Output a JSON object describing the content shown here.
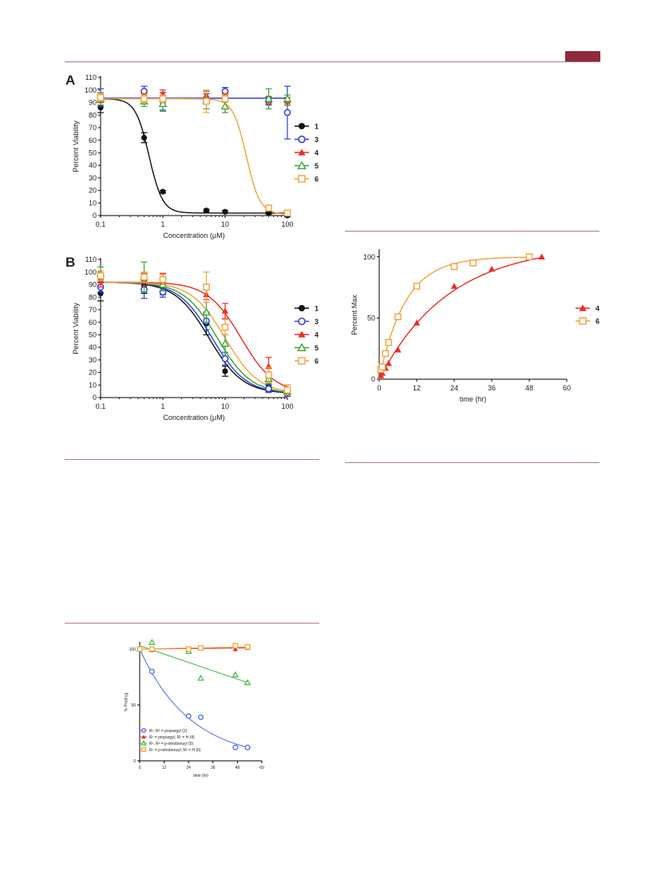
{
  "page": {
    "accent": "#8e2a3a",
    "rule_color": "#b07a86"
  },
  "chart_data": [
    {
      "id": "A",
      "panel_label": "A",
      "type": "scatter",
      "x_scale": "log",
      "xlabel": "Concentration (μM)",
      "ylabel": "Percent Viability",
      "xlim": [
        0.1,
        100
      ],
      "ylim": [
        0,
        110
      ],
      "x_ticks": [
        "0.1",
        "1",
        "10",
        "100"
      ],
      "y_ticks": [
        0,
        10,
        20,
        30,
        40,
        50,
        60,
        70,
        80,
        90,
        100,
        110
      ],
      "legend_position": "right",
      "series": [
        {
          "name": "1",
          "color": "#111111",
          "marker": "filled-circle",
          "x": [
            0.1,
            0.5,
            1,
            5,
            10,
            50,
            100
          ],
          "y": [
            86,
            62,
            19,
            4,
            3,
            2,
            0
          ],
          "err": [
            4,
            4,
            1,
            1,
            1,
            1,
            1
          ],
          "fit": {
            "top": 93,
            "bottom": 2,
            "ec50": 0.6,
            "hill": 4
          }
        },
        {
          "name": "3",
          "color": "#2f3fd6",
          "marker": "open-circle",
          "x": [
            0.1,
            0.5,
            1,
            5,
            10,
            50,
            100
          ],
          "y": [
            94,
            99,
            91,
            93,
            99,
            91,
            82
          ],
          "err": [
            7,
            4,
            7,
            4,
            3,
            3,
            21
          ],
          "fit": {
            "top": 93.5,
            "bottom": 93.5,
            "ec50": 10,
            "hill": 1
          }
        },
        {
          "name": "4",
          "color": "#ee2b24",
          "marker": "filled-triangle",
          "x": [
            0.1,
            0.5,
            1,
            5,
            10,
            50,
            100
          ],
          "y": [
            93,
            94,
            97,
            96,
            94,
            92,
            91
          ],
          "err": [
            3,
            3,
            3,
            3,
            3,
            3,
            3
          ],
          "fit": null
        },
        {
          "name": "5",
          "color": "#33a532",
          "marker": "open-triangle",
          "x": [
            0.1,
            0.5,
            1,
            5,
            10,
            50,
            100
          ],
          "y": [
            93,
            91,
            89,
            92,
            87,
            93,
            93
          ],
          "err": [
            5,
            4,
            6,
            7,
            5,
            8,
            3
          ],
          "fit": null
        },
        {
          "name": "6",
          "color": "#f6a13b",
          "marker": "open-square",
          "x": [
            0.1,
            0.5,
            1,
            5,
            10,
            50,
            100
          ],
          "y": [
            94,
            93,
            93,
            91,
            93,
            6,
            2
          ],
          "err": [
            3,
            3,
            3,
            9,
            3,
            2,
            1
          ],
          "fit": {
            "top": 93,
            "bottom": 1,
            "ec50": 22,
            "hill": 4
          }
        }
      ]
    },
    {
      "id": "B",
      "panel_label": "B",
      "type": "scatter",
      "x_scale": "log",
      "xlabel": "Concentration (μM)",
      "ylabel": "Percent Viability",
      "xlim": [
        0.1,
        100
      ],
      "ylim": [
        0,
        110
      ],
      "x_ticks": [
        "0.1",
        "1",
        "10",
        "100"
      ],
      "y_ticks": [
        0,
        10,
        20,
        30,
        40,
        50,
        60,
        70,
        80,
        90,
        100,
        110
      ],
      "legend_position": "right",
      "series": [
        {
          "name": "1",
          "color": "#111111",
          "marker": "filled-circle",
          "x": [
            0.1,
            0.5,
            1,
            5,
            10,
            50,
            100
          ],
          "y": [
            83,
            89,
            90,
            59,
            21,
            9,
            4
          ],
          "err": [
            6,
            6,
            8,
            9,
            4,
            4,
            3
          ],
          "fit": {
            "top": 92,
            "bottom": 3,
            "ec50": 5.5,
            "hill": 1.6
          }
        },
        {
          "name": "3",
          "color": "#2f3fd6",
          "marker": "open-circle",
          "x": [
            0.1,
            0.5,
            1,
            5,
            10,
            50,
            100
          ],
          "y": [
            88,
            86,
            84,
            61,
            31,
            7,
            4
          ],
          "err": [
            4,
            7,
            4,
            7,
            5,
            3,
            3
          ],
          "fit": {
            "top": 92,
            "bottom": 3,
            "ec50": 6.2,
            "hill": 1.6
          }
        },
        {
          "name": "4",
          "color": "#ee2b24",
          "marker": "filled-triangle",
          "x": [
            0.1,
            0.5,
            1,
            5,
            10,
            50,
            100
          ],
          "y": [
            93,
            94,
            95,
            82,
            69,
            25,
            6
          ],
          "err": [
            5,
            5,
            4,
            4,
            6,
            7,
            4
          ],
          "fit": {
            "top": 92,
            "bottom": 3,
            "ec50": 18,
            "hill": 1.6
          }
        },
        {
          "name": "5",
          "color": "#33a532",
          "marker": "open-triangle",
          "x": [
            0.1,
            0.5,
            1,
            5,
            10,
            50,
            100
          ],
          "y": [
            99,
            96,
            90,
            68,
            43,
            15,
            5
          ],
          "err": [
            5,
            12,
            5,
            8,
            7,
            4,
            3
          ],
          "fit": {
            "top": 92,
            "bottom": 3,
            "ec50": 7.5,
            "hill": 1.6
          }
        },
        {
          "name": "6",
          "color": "#f6a13b",
          "marker": "open-square",
          "x": [
            0.1,
            0.5,
            1,
            5,
            10,
            50,
            100
          ],
          "y": [
            97,
            96,
            94,
            88,
            56,
            18,
            6
          ],
          "err": [
            4,
            4,
            4,
            12,
            6,
            6,
            4
          ],
          "fit": {
            "top": 92,
            "bottom": 3,
            "ec50": 10,
            "hill": 1.6
          }
        }
      ]
    },
    {
      "id": "C",
      "type": "scatter",
      "x_scale": "linear",
      "xlabel": "time (hr)",
      "ylabel": "Percent Max",
      "xlim": [
        0,
        60
      ],
      "ylim": [
        0,
        105
      ],
      "x_ticks": [
        0,
        12,
        24,
        36,
        48,
        60
      ],
      "y_ticks": [
        0,
        50,
        100
      ],
      "legend_position": "right",
      "series": [
        {
          "name": "4",
          "color": "#ee2b24",
          "marker": "filled-triangle",
          "x": [
            0.5,
            1,
            2,
            3,
            6,
            12,
            24,
            36,
            52
          ],
          "y": [
            3,
            5,
            9,
            13,
            24,
            46,
            76,
            90,
            100
          ],
          "fit": {
            "plateau": 110,
            "k": 0.045,
            "xmax": 52
          }
        },
        {
          "name": "6",
          "color": "#f6a13b",
          "marker": "open-square",
          "x": [
            0.5,
            1,
            2,
            3,
            6,
            12,
            24,
            30,
            48
          ],
          "y": [
            8,
            10,
            21,
            30,
            51,
            76,
            92,
            95,
            100
          ],
          "fit": {
            "plateau": 100,
            "k": 0.12,
            "xmax": 48
          }
        }
      ]
    },
    {
      "id": "D",
      "type": "scatter",
      "x_scale": "linear",
      "xlabel": "time (hr)",
      "ylabel": "% Prodrug",
      "xlim": [
        0,
        60
      ],
      "ylim": [
        0,
        105
      ],
      "x_ticks": [
        0,
        12,
        24,
        36,
        48,
        60
      ],
      "y_ticks": [
        0,
        50,
        100
      ],
      "legend_position": "bottom-left",
      "series": [
        {
          "name": "R¹, R² = propargyl (3)",
          "color": "#5a74f0",
          "marker": "open-circle",
          "x": [
            0,
            6,
            24,
            30,
            47,
            53
          ],
          "y": [
            100,
            80,
            40,
            39,
            12,
            12
          ],
          "fit": {
            "type": "decay",
            "k": 0.04
          }
        },
        {
          "name": "R¹ = propargyl, R² = H (4)",
          "color": "#e83020",
          "marker": "filled-triangle",
          "x": [
            0,
            6,
            24,
            30,
            47,
            53
          ],
          "y": [
            100,
            99,
            100,
            101,
            100,
            101
          ],
          "fit": {
            "type": "line",
            "y0": 100,
            "y1": 101
          }
        },
        {
          "name": "R¹, R² = p-nitrobenzyl (5)",
          "color": "#4cbb4c",
          "marker": "open-triangle",
          "x": [
            0,
            6,
            24,
            30,
            47,
            53
          ],
          "y": [
            100,
            106,
            98,
            74,
            77,
            70
          ],
          "fit": {
            "type": "line",
            "y0": 103,
            "y1": 70
          }
        },
        {
          "name": "R¹ = p-nitrobenzyl, R² = H (6)",
          "color": "#f5a845",
          "marker": "open-square",
          "x": [
            0,
            6,
            24,
            30,
            47,
            53
          ],
          "y": [
            100,
            100,
            100,
            101,
            103,
            102
          ],
          "fit": {
            "type": "line",
            "y0": 100,
            "y1": 102
          }
        }
      ]
    }
  ]
}
